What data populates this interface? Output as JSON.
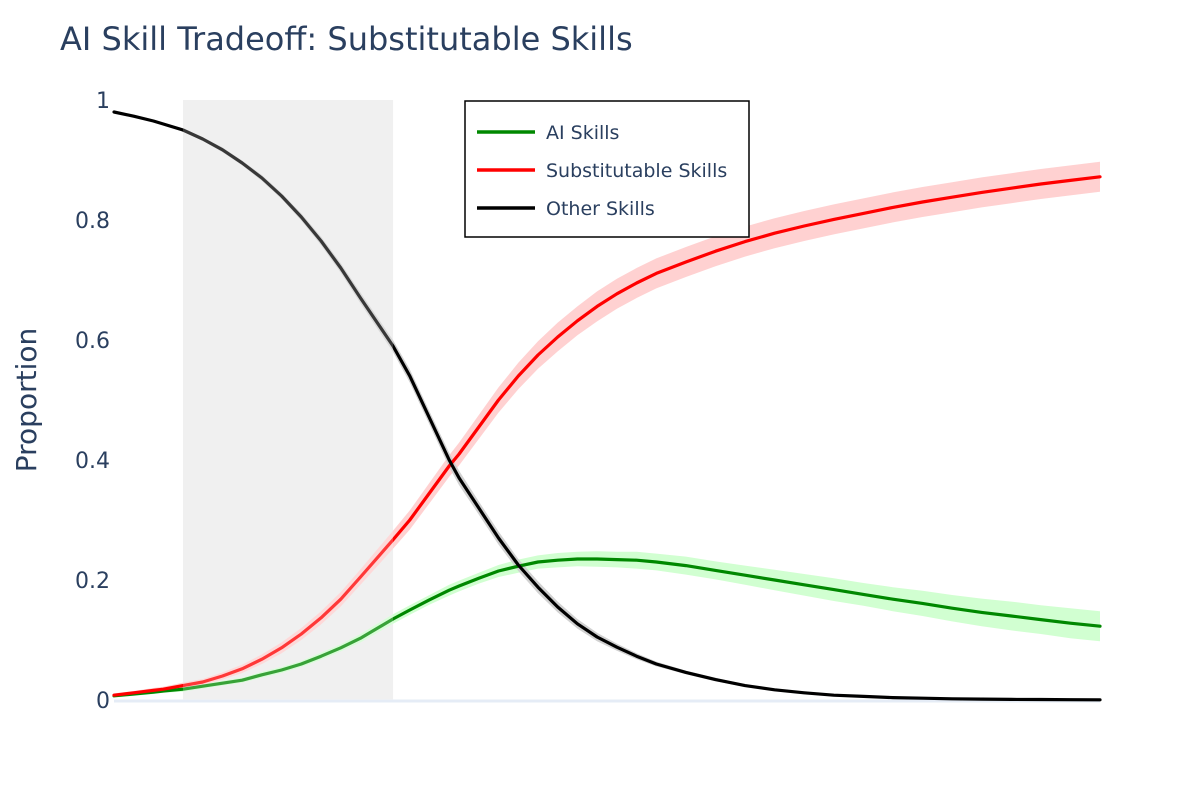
{
  "chart_data": {
    "type": "line",
    "title": "AI Skill Tradeoff: Substitutable Skills",
    "xlabel": "",
    "ylabel": "Proportion",
    "xlim": [
      0,
      100
    ],
    "ylim": [
      0,
      1
    ],
    "yticks": [
      0,
      0.2,
      0.4,
      0.6,
      0.8,
      1
    ],
    "ytick_labels": [
      "0",
      "0.2",
      "0.4",
      "0.6",
      "0.8",
      "1"
    ],
    "grid": false,
    "legend_position": "top-center",
    "shaded_region": {
      "x_start": 7,
      "x_end": 28.3,
      "color": "#ececec"
    },
    "x": [
      0,
      2,
      4,
      5,
      7,
      9,
      11,
      13,
      15,
      17,
      19,
      21,
      23,
      25,
      28.3,
      30,
      32,
      34,
      35,
      37,
      39,
      41,
      43,
      45,
      47,
      49,
      51,
      53,
      55,
      58,
      61,
      64,
      67,
      70,
      73,
      76,
      79,
      82,
      85,
      88,
      91,
      94,
      97,
      100
    ],
    "series": [
      {
        "name": "AI Skills",
        "color": "#008800",
        "band_color": "#ccffcc",
        "values": [
          0.007,
          0.01,
          0.013,
          0.015,
          0.018,
          0.023,
          0.028,
          0.033,
          0.042,
          0.05,
          0.06,
          0.073,
          0.087,
          0.103,
          0.135,
          0.15,
          0.167,
          0.183,
          0.19,
          0.203,
          0.215,
          0.223,
          0.23,
          0.233,
          0.235,
          0.235,
          0.234,
          0.233,
          0.23,
          0.224,
          0.216,
          0.208,
          0.2,
          0.192,
          0.184,
          0.176,
          0.168,
          0.161,
          0.153,
          0.146,
          0.14,
          0.134,
          0.128,
          0.123
        ],
        "band": [
          0.003,
          0.003,
          0.003,
          0.003,
          0.004,
          0.004,
          0.004,
          0.004,
          0.005,
          0.005,
          0.005,
          0.006,
          0.006,
          0.007,
          0.008,
          0.008,
          0.008,
          0.009,
          0.009,
          0.009,
          0.01,
          0.011,
          0.011,
          0.012,
          0.012,
          0.013,
          0.013,
          0.014,
          0.014,
          0.015,
          0.015,
          0.016,
          0.017,
          0.018,
          0.019,
          0.019,
          0.02,
          0.021,
          0.022,
          0.023,
          0.024,
          0.024,
          0.025,
          0.025
        ]
      },
      {
        "name": "Substitutable Skills",
        "color": "#ff0000",
        "band_color": "#ffcccc",
        "values": [
          0.008,
          0.012,
          0.016,
          0.018,
          0.024,
          0.03,
          0.04,
          0.052,
          0.068,
          0.087,
          0.11,
          0.137,
          0.168,
          0.205,
          0.267,
          0.3,
          0.345,
          0.39,
          0.41,
          0.455,
          0.5,
          0.54,
          0.575,
          0.605,
          0.632,
          0.656,
          0.677,
          0.695,
          0.711,
          0.73,
          0.748,
          0.764,
          0.778,
          0.79,
          0.801,
          0.811,
          0.821,
          0.83,
          0.838,
          0.846,
          0.853,
          0.86,
          0.866,
          0.872
        ],
        "band": [
          0.003,
          0.003,
          0.004,
          0.004,
          0.005,
          0.005,
          0.006,
          0.007,
          0.008,
          0.009,
          0.01,
          0.011,
          0.012,
          0.013,
          0.015,
          0.016,
          0.017,
          0.018,
          0.019,
          0.02,
          0.021,
          0.022,
          0.023,
          0.024,
          0.024,
          0.025,
          0.025,
          0.025,
          0.025,
          0.025,
          0.025,
          0.025,
          0.025,
          0.025,
          0.025,
          0.025,
          0.025,
          0.025,
          0.025,
          0.025,
          0.025,
          0.025,
          0.025,
          0.025
        ]
      },
      {
        "name": "Other Skills",
        "color": "#000000",
        "band_color": "#cccccc",
        "values": [
          0.98,
          0.973,
          0.965,
          0.96,
          0.95,
          0.935,
          0.917,
          0.895,
          0.87,
          0.84,
          0.805,
          0.765,
          0.72,
          0.67,
          0.59,
          0.54,
          0.47,
          0.4,
          0.37,
          0.32,
          0.27,
          0.225,
          0.188,
          0.155,
          0.127,
          0.105,
          0.088,
          0.073,
          0.06,
          0.046,
          0.034,
          0.024,
          0.017,
          0.012,
          0.008,
          0.006,
          0.004,
          0.003,
          0.002,
          0.0015,
          0.001,
          0.0008,
          0.0005,
          0.0003
        ],
        "band": [
          0.002,
          0.002,
          0.002,
          0.002,
          0.003,
          0.003,
          0.004,
          0.004,
          0.005,
          0.005,
          0.006,
          0.007,
          0.008,
          0.009,
          0.01,
          0.011,
          0.011,
          0.012,
          0.012,
          0.011,
          0.011,
          0.01,
          0.01,
          0.009,
          0.008,
          0.007,
          0.006,
          0.005,
          0.004,
          0.003,
          0.003,
          0.002,
          0.002,
          0.001,
          0.001,
          0.001,
          0.001,
          0.001,
          0.001,
          0.001,
          0.001,
          0.001,
          0.001,
          0.001
        ]
      }
    ]
  }
}
